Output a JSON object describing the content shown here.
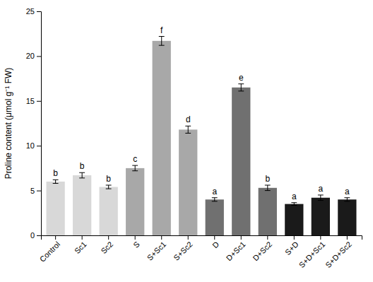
{
  "chart_data": {
    "type": "bar",
    "ylabel": "Proline content (μmol g⁻¹ FW)",
    "categories": [
      "Control",
      "Sc1",
      "Sc2",
      "S",
      "S+Sc1",
      "S+Sc2",
      "D",
      "D+Sc1",
      "D+Sc2",
      "S+D",
      "S+D+Sc1",
      "S+D+Sc2"
    ],
    "values": [
      6.0,
      6.7,
      5.4,
      7.5,
      21.7,
      11.8,
      4.0,
      16.5,
      5.3,
      3.5,
      4.2,
      4.0
    ],
    "errors": [
      0.2,
      0.3,
      0.2,
      0.3,
      0.5,
      0.4,
      0.2,
      0.4,
      0.3,
      0.15,
      0.3,
      0.2
    ],
    "letters": [
      "b",
      "b",
      "b",
      "c",
      "f",
      "d",
      "a",
      "e",
      "b",
      "a",
      "a",
      "a"
    ],
    "colors": [
      "#d8d8d8",
      "#d8d8d8",
      "#d8d8d8",
      "#a8a8a8",
      "#a8a8a8",
      "#a8a8a8",
      "#707070",
      "#707070",
      "#707070",
      "#1a1a1a",
      "#1a1a1a",
      "#1a1a1a"
    ],
    "ylim": [
      0,
      25
    ],
    "yticks": [
      0,
      5,
      10,
      15,
      20,
      25
    ],
    "grid": false
  }
}
